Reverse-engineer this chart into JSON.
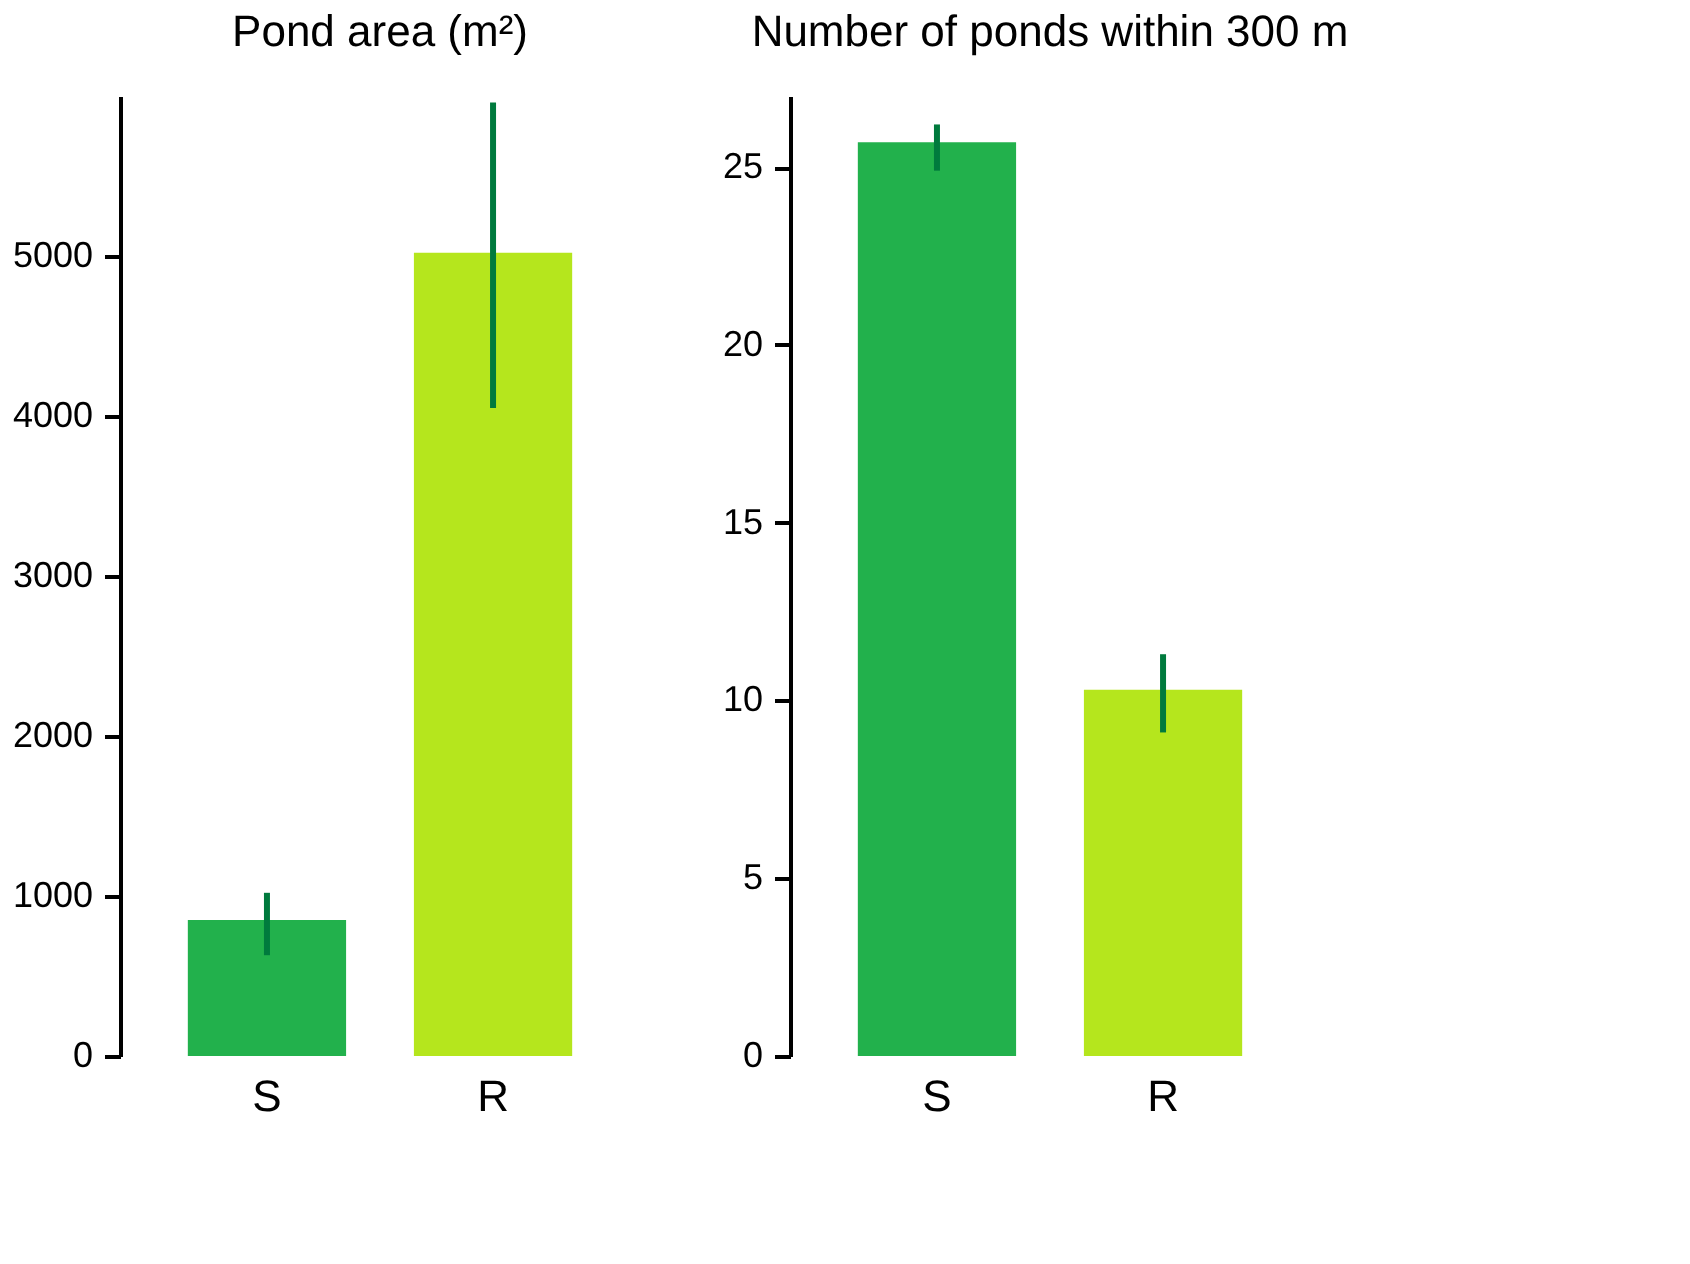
{
  "chart_data": [
    {
      "type": "bar",
      "title": "Pond area (m²)",
      "categories": [
        "S",
        "R"
      ],
      "values": [
        850,
        5020
      ],
      "colors": [
        "#22b14c",
        "#b5e61d"
      ],
      "errors": [
        [
          630,
          1020
        ],
        [
          4050,
          5960
        ]
      ],
      "ylim": [
        0,
        6000
      ],
      "yticks": [
        0,
        1000,
        2000,
        3000,
        4000,
        5000
      ],
      "grid": false
    },
    {
      "type": "bar",
      "title": "Number of ponds within 300 m",
      "categories": [
        "S",
        "R"
      ],
      "values": [
        25.7,
        10.3
      ],
      "colors": [
        "#22b14c",
        "#b5e61d"
      ],
      "errors": [
        [
          24.9,
          26.2
        ],
        [
          9.1,
          11.3
        ]
      ],
      "ylim": [
        0,
        27
      ],
      "yticks": [
        0,
        5,
        10,
        15,
        20,
        25
      ],
      "grid": false
    }
  ]
}
